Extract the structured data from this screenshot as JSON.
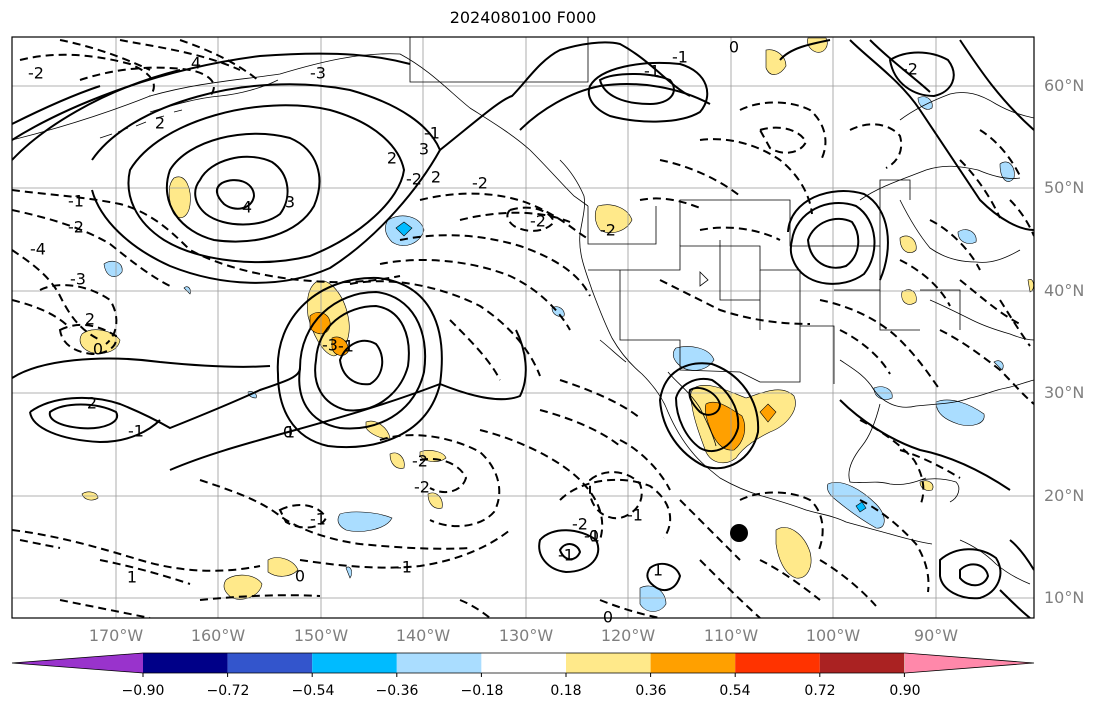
{
  "title": "2024080100 F000",
  "lat_labels": [
    "60°N",
    "50°N",
    "40°N",
    "30°N",
    "20°N",
    "10°N"
  ],
  "lon_labels": [
    "170°W",
    "160°W",
    "150°W",
    "140°W",
    "130°W",
    "120°W",
    "110°W",
    "100°W",
    "90°W"
  ],
  "colorbar": {
    "labels": [
      "−0.90",
      "−0.72",
      "−0.54",
      "−0.36",
      "−0.18",
      "0.18",
      "0.36",
      "0.54",
      "0.72",
      "0.90"
    ],
    "colors": [
      "#9933cc",
      "#000088",
      "#3355cc",
      "#00bbff",
      "#aaddff",
      "#ffffff",
      "#ffe98a",
      "#ffa000",
      "#ff3300",
      "#aa2222",
      "#ff88aa"
    ]
  },
  "contour_labels": [
    "4",
    "2",
    "3",
    "4",
    "-1",
    "-2",
    "-4",
    "-3",
    "2",
    "0",
    "-1",
    "2",
    "1",
    "0",
    "-1",
    "-3",
    "-2",
    "-2",
    "-3",
    "-1",
    "-2",
    "3",
    "-2",
    "2",
    "-1",
    "-2",
    "2",
    "-2",
    "1",
    "0",
    "-1",
    "-1",
    "-2",
    "-2",
    "-1",
    "0",
    "1",
    "-1",
    "0",
    "-1",
    "-1",
    "0",
    "-2"
  ],
  "fill_colors": {
    "pos_weak": "#ffe98a",
    "pos_mid": "#ffa000",
    "neg_weak": "#aaddff",
    "neg_mid": "#00bbff"
  }
}
